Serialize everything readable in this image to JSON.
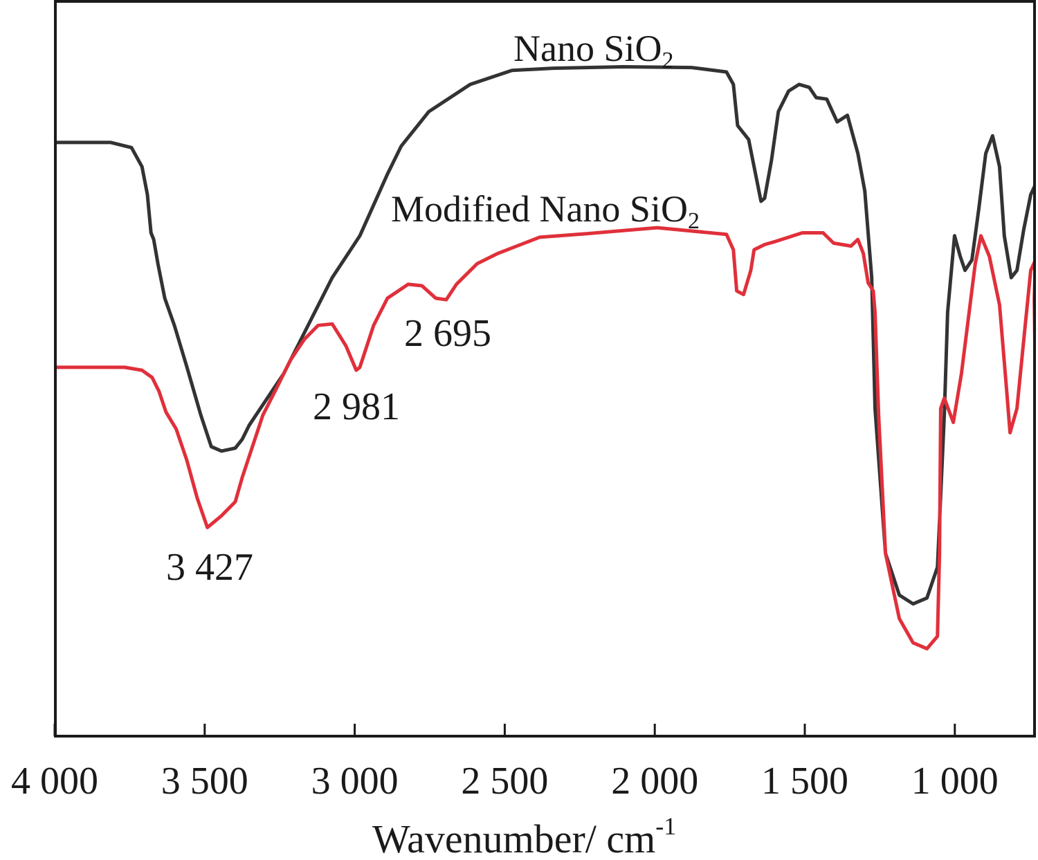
{
  "chart_data": {
    "type": "line",
    "title": "",
    "xlabel": "Wavenumber/ cm",
    "xlabel_superscript": "-1",
    "ylabel": "",
    "xlim": [
      4000,
      730
    ],
    "ylim": [
      0,
      100
    ],
    "x_reversed": true,
    "grid": false,
    "x_ticks": [
      4000,
      3500,
      3000,
      2500,
      2000,
      1500,
      1000
    ],
    "x_tick_labels": [
      "4 000",
      "3 500",
      "3 000",
      "2 500",
      "2 000",
      "1 500",
      "1 000"
    ],
    "series": [
      {
        "name": "Nano SiO",
        "name_subscript": "2",
        "color": "#333333",
        "points": [
          [
            4000,
            80.8
          ],
          [
            3813,
            80.8
          ],
          [
            3744,
            80.1
          ],
          [
            3709,
            77.5
          ],
          [
            3691,
            73.7
          ],
          [
            3679,
            68.5
          ],
          [
            3670,
            67.6
          ],
          [
            3656,
            64.3
          ],
          [
            3633,
            59.6
          ],
          [
            3601,
            55.9
          ],
          [
            3559,
            50.2
          ],
          [
            3513,
            43.7
          ],
          [
            3478,
            39.4
          ],
          [
            3444,
            38.8
          ],
          [
            3398,
            39.2
          ],
          [
            3375,
            40.4
          ],
          [
            3352,
            42.3
          ],
          [
            3306,
            45.1
          ],
          [
            3237,
            49.3
          ],
          [
            3168,
            54.9
          ],
          [
            3075,
            62.4
          ],
          [
            2983,
            68.1
          ],
          [
            2891,
            76.5
          ],
          [
            2845,
            80.3
          ],
          [
            2753,
            85.0
          ],
          [
            2615,
            88.7
          ],
          [
            2476,
            90.6
          ],
          [
            2338,
            90.9
          ],
          [
            2107,
            91.1
          ],
          [
            1877,
            91.0
          ],
          [
            1761,
            90.4
          ],
          [
            1738,
            88.7
          ],
          [
            1724,
            83.1
          ],
          [
            1687,
            81.2
          ],
          [
            1669,
            77.5
          ],
          [
            1646,
            72.8
          ],
          [
            1634,
            73.2
          ],
          [
            1611,
            78.4
          ],
          [
            1588,
            85.0
          ],
          [
            1554,
            87.8
          ],
          [
            1519,
            88.7
          ],
          [
            1485,
            88.3
          ],
          [
            1462,
            86.9
          ],
          [
            1427,
            86.7
          ],
          [
            1392,
            83.6
          ],
          [
            1358,
            84.5
          ],
          [
            1323,
            79.3
          ],
          [
            1300,
            74.2
          ],
          [
            1277,
            62.4
          ],
          [
            1266,
            44.6
          ],
          [
            1231,
            24.9
          ],
          [
            1185,
            19.2
          ],
          [
            1139,
            18.0
          ],
          [
            1093,
            18.8
          ],
          [
            1058,
            23.0
          ],
          [
            1035,
            43.7
          ],
          [
            1024,
            57.7
          ],
          [
            1001,
            68.1
          ],
          [
            982,
            65.3
          ],
          [
            966,
            63.4
          ],
          [
            943,
            64.8
          ],
          [
            920,
            71.8
          ],
          [
            897,
            79.3
          ],
          [
            874,
            81.7
          ],
          [
            851,
            77.5
          ],
          [
            835,
            68.1
          ],
          [
            812,
            62.4
          ],
          [
            793,
            63.4
          ],
          [
            770,
            69.0
          ],
          [
            747,
            73.7
          ],
          [
            731,
            75.1
          ]
        ]
      },
      {
        "name": "Modified Nano SiO",
        "name_subscript": "2",
        "color": "#e0303b",
        "points": [
          [
            4000,
            50.2
          ],
          [
            3767,
            50.2
          ],
          [
            3709,
            49.8
          ],
          [
            3675,
            48.8
          ],
          [
            3652,
            46.9
          ],
          [
            3629,
            44.1
          ],
          [
            3595,
            41.8
          ],
          [
            3560,
            37.6
          ],
          [
            3525,
            32.4
          ],
          [
            3491,
            28.4
          ],
          [
            3444,
            30.0
          ],
          [
            3398,
            31.9
          ],
          [
            3375,
            35.2
          ],
          [
            3306,
            43.7
          ],
          [
            3260,
            47.4
          ],
          [
            3214,
            51.2
          ],
          [
            3168,
            54.0
          ],
          [
            3122,
            55.9
          ],
          [
            3075,
            56.1
          ],
          [
            3029,
            53.1
          ],
          [
            2995,
            49.8
          ],
          [
            2983,
            50.2
          ],
          [
            2937,
            55.9
          ],
          [
            2891,
            59.6
          ],
          [
            2822,
            61.5
          ],
          [
            2776,
            61.3
          ],
          [
            2730,
            59.6
          ],
          [
            2695,
            59.4
          ],
          [
            2661,
            61.5
          ],
          [
            2592,
            64.3
          ],
          [
            2523,
            65.7
          ],
          [
            2384,
            67.9
          ],
          [
            2223,
            68.4
          ],
          [
            1992,
            69.2
          ],
          [
            1761,
            68.3
          ],
          [
            1738,
            66.2
          ],
          [
            1727,
            60.6
          ],
          [
            1704,
            60.1
          ],
          [
            1680,
            63.4
          ],
          [
            1669,
            66.2
          ],
          [
            1634,
            66.9
          ],
          [
            1600,
            67.3
          ],
          [
            1508,
            68.5
          ],
          [
            1439,
            68.5
          ],
          [
            1404,
            67.1
          ],
          [
            1346,
            66.7
          ],
          [
            1323,
            67.6
          ],
          [
            1305,
            65.7
          ],
          [
            1289,
            61.7
          ],
          [
            1272,
            60.6
          ],
          [
            1266,
            57.7
          ],
          [
            1254,
            43.7
          ],
          [
            1231,
            24.9
          ],
          [
            1185,
            16.0
          ],
          [
            1139,
            12.7
          ],
          [
            1093,
            11.9
          ],
          [
            1058,
            13.6
          ],
          [
            1051,
            24.9
          ],
          [
            1047,
            44.6
          ],
          [
            1035,
            46.0
          ],
          [
            1005,
            42.7
          ],
          [
            978,
            49.3
          ],
          [
            955,
            56.8
          ],
          [
            932,
            64.3
          ],
          [
            913,
            68.1
          ],
          [
            885,
            65.3
          ],
          [
            851,
            58.7
          ],
          [
            828,
            47.4
          ],
          [
            816,
            41.3
          ],
          [
            793,
            44.6
          ],
          [
            770,
            54.0
          ],
          [
            747,
            63.4
          ],
          [
            731,
            64.8
          ],
          [
            735,
            59.6
          ],
          [
            731,
            46.5
          ]
        ]
      }
    ],
    "series_labels": [
      {
        "text": "Nano SiO",
        "subscript": "2"
      },
      {
        "text": "Modified Nano SiO",
        "subscript": "2"
      }
    ],
    "annotations": [
      {
        "text": "3 427",
        "x": 3427
      },
      {
        "text": "2 981",
        "x": 2981
      },
      {
        "text": "2 695",
        "x": 2695
      }
    ]
  }
}
